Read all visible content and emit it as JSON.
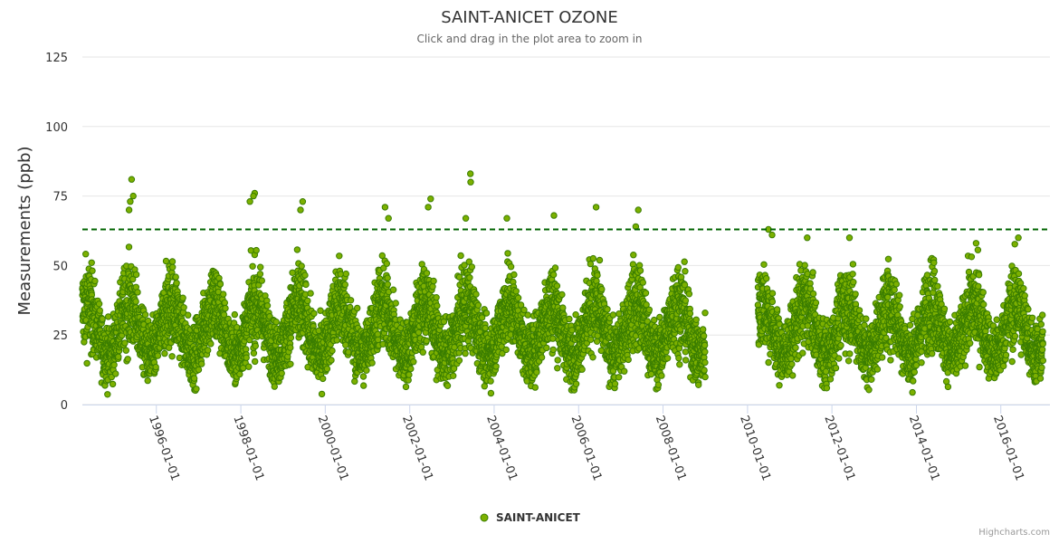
{
  "chart_data": {
    "type": "scatter",
    "title": "SAINT-ANICET OZONE",
    "subtitle": "Click and drag in the plot area to zoom in",
    "ylabel": "Measurements (ppb)",
    "xlabel": "",
    "x_axis_type": "datetime",
    "x_range": [
      "1994-04-01",
      "2017-03-01"
    ],
    "xticks": [
      "1996-01-01",
      "1998-01-01",
      "2000-01-01",
      "2002-01-01",
      "2004-01-01",
      "2006-01-01",
      "2008-01-01",
      "2010-01-01",
      "2012-01-01",
      "2014-01-01",
      "2016-01-01"
    ],
    "yticks": [
      0,
      25,
      50,
      75,
      100,
      125
    ],
    "ylim": [
      0,
      125
    ],
    "grid": true,
    "legend_position": "bottom-center",
    "threshold_line": {
      "y": 63,
      "style": "dashed",
      "color": "#006400"
    },
    "series": [
      {
        "name": "SAINT-ANICET",
        "color": "#7cb000",
        "stroke": "#3a7d00",
        "description_of_pattern": "daily ozone values, seasonal cycle roughly 10-45 ppb, peaks in spring/summer, data gap 2009-2010",
        "data_gap": [
          "2009-01-01",
          "2010-04-01"
        ],
        "peaks": [
          {
            "x": "1995-06-01",
            "y": 81
          },
          {
            "x": "1995-06-15",
            "y": 75
          },
          {
            "x": "1995-05-20",
            "y": 73
          },
          {
            "x": "1995-05-10",
            "y": 70
          },
          {
            "x": "1998-05-01",
            "y": 76
          },
          {
            "x": "1998-04-20",
            "y": 75
          },
          {
            "x": "1998-03-20",
            "y": 73
          },
          {
            "x": "1999-06-20",
            "y": 73
          },
          {
            "x": "1999-06-01",
            "y": 70
          },
          {
            "x": "2001-06-01",
            "y": 71
          },
          {
            "x": "2001-07-01",
            "y": 67
          },
          {
            "x": "2002-07-01",
            "y": 74
          },
          {
            "x": "2002-06-10",
            "y": 71
          },
          {
            "x": "2003-06-10",
            "y": 83
          },
          {
            "x": "2003-06-12",
            "y": 80
          },
          {
            "x": "2003-05-01",
            "y": 67
          },
          {
            "x": "2004-04-20",
            "y": 67
          },
          {
            "x": "2005-06-01",
            "y": 68
          },
          {
            "x": "2006-06-01",
            "y": 71
          },
          {
            "x": "2007-06-01",
            "y": 70
          },
          {
            "x": "2007-05-10",
            "y": 64
          },
          {
            "x": "2010-07-01",
            "y": 63
          },
          {
            "x": "2010-08-01",
            "y": 61
          },
          {
            "x": "2011-06-01",
            "y": 60
          },
          {
            "x": "2012-06-01",
            "y": 60
          },
          {
            "x": "2014-06-01",
            "y": 51
          },
          {
            "x": "2015-06-01",
            "y": 58
          },
          {
            "x": "2016-06-01",
            "y": 60
          }
        ]
      }
    ]
  },
  "credits": "Highcharts.com"
}
